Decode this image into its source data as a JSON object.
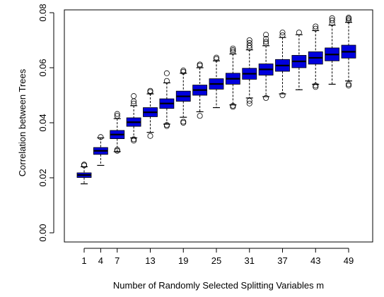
{
  "chart_data": {
    "type": "boxplot",
    "title": "",
    "xlabel": "Number of Randomly Selected Splitting Variables m",
    "ylabel": "Correlation between Trees",
    "ylim": [
      0.0,
      0.08
    ],
    "y_ticks": [
      0.0,
      0.02,
      0.04,
      0.06,
      0.08
    ],
    "y_tick_labels": [
      "0.00",
      "0.02",
      "0.04",
      "0.06",
      "0.08"
    ],
    "x_tick_labels": [
      "1",
      "4",
      "7",
      "13",
      "19",
      "25",
      "31",
      "37",
      "43",
      "49"
    ],
    "x_tick_values": [
      1,
      4,
      7,
      13,
      19,
      25,
      31,
      37,
      43,
      49
    ],
    "box_color": "#0000dd",
    "boxes": [
      {
        "m": 1,
        "whisker_low": 0.0178,
        "q1": 0.0201,
        "median": 0.021,
        "q3": 0.0218,
        "whisker_high": 0.024,
        "outliers": [
          0.0245,
          0.0248
        ]
      },
      {
        "m": 4,
        "whisker_low": 0.0245,
        "q1": 0.0285,
        "median": 0.0298,
        "q3": 0.031,
        "whisker_high": 0.0345,
        "outliers": [
          0.0348
        ]
      },
      {
        "m": 7,
        "whisker_low": 0.0295,
        "q1": 0.0342,
        "median": 0.0357,
        "q3": 0.0372,
        "whisker_high": 0.0415,
        "outliers": [
          0.0298,
          0.0302,
          0.0425,
          0.0432
        ]
      },
      {
        "m": 10,
        "whisker_low": 0.0345,
        "q1": 0.0387,
        "median": 0.0402,
        "q3": 0.0418,
        "whisker_high": 0.0462,
        "outliers": [
          0.0335,
          0.034,
          0.047,
          0.0478,
          0.0497
        ]
      },
      {
        "m": 13,
        "whisker_low": 0.0365,
        "q1": 0.0422,
        "median": 0.0438,
        "q3": 0.0455,
        "whisker_high": 0.0505,
        "outliers": [
          0.0352,
          0.0512,
          0.0516
        ]
      },
      {
        "m": 16,
        "whisker_low": 0.0395,
        "q1": 0.0452,
        "median": 0.047,
        "q3": 0.0487,
        "whisker_high": 0.0545,
        "outliers": [
          0.0388,
          0.0392,
          0.0552,
          0.058
        ]
      },
      {
        "m": 19,
        "whisker_low": 0.042,
        "q1": 0.0478,
        "median": 0.0496,
        "q3": 0.0515,
        "whisker_high": 0.058,
        "outliers": [
          0.04,
          0.0404,
          0.0585,
          0.059
        ]
      },
      {
        "m": 22,
        "whisker_low": 0.044,
        "q1": 0.05,
        "median": 0.0519,
        "q3": 0.0537,
        "whisker_high": 0.06,
        "outliers": [
          0.0425,
          0.0608,
          0.0612
        ]
      },
      {
        "m": 25,
        "whisker_low": 0.0455,
        "q1": 0.0522,
        "median": 0.0541,
        "q3": 0.056,
        "whisker_high": 0.0625,
        "outliers": [
          0.0632,
          0.0637
        ]
      },
      {
        "m": 28,
        "whisker_low": 0.0465,
        "q1": 0.054,
        "median": 0.056,
        "q3": 0.058,
        "whisker_high": 0.065,
        "outliers": [
          0.0458,
          0.0462,
          0.0658,
          0.0664,
          0.067
        ]
      },
      {
        "m": 31,
        "whisker_low": 0.049,
        "q1": 0.0558,
        "median": 0.0578,
        "q3": 0.0598,
        "whisker_high": 0.0665,
        "outliers": [
          0.047,
          0.048,
          0.0672,
          0.068,
          0.069,
          0.07
        ]
      },
      {
        "m": 34,
        "whisker_low": 0.0495,
        "q1": 0.0573,
        "median": 0.0594,
        "q3": 0.0614,
        "whisker_high": 0.068,
        "outliers": [
          0.049,
          0.0688,
          0.0695,
          0.0705,
          0.072
        ]
      },
      {
        "m": 37,
        "whisker_low": 0.0505,
        "q1": 0.0587,
        "median": 0.0608,
        "q3": 0.063,
        "whisker_high": 0.071,
        "outliers": [
          0.05,
          0.0718,
          0.0728
        ]
      },
      {
        "m": 40,
        "whisker_low": 0.052,
        "q1": 0.06,
        "median": 0.0623,
        "q3": 0.0645,
        "whisker_high": 0.072,
        "outliers": [
          0.0728
        ]
      },
      {
        "m": 43,
        "whisker_low": 0.054,
        "q1": 0.0613,
        "median": 0.0636,
        "q3": 0.0658,
        "whisker_high": 0.0735,
        "outliers": [
          0.053,
          0.0535,
          0.0742,
          0.075
        ]
      },
      {
        "m": 46,
        "whisker_low": 0.054,
        "q1": 0.0625,
        "median": 0.0648,
        "q3": 0.0672,
        "whisker_high": 0.0755,
        "outliers": [
          0.0762,
          0.0772,
          0.078
        ]
      },
      {
        "m": 49,
        "whisker_low": 0.0552,
        "q1": 0.0635,
        "median": 0.0658,
        "q3": 0.0682,
        "whisker_high": 0.0765,
        "outliers": [
          0.0535,
          0.054,
          0.0772,
          0.0778,
          0.0782
        ]
      }
    ]
  }
}
